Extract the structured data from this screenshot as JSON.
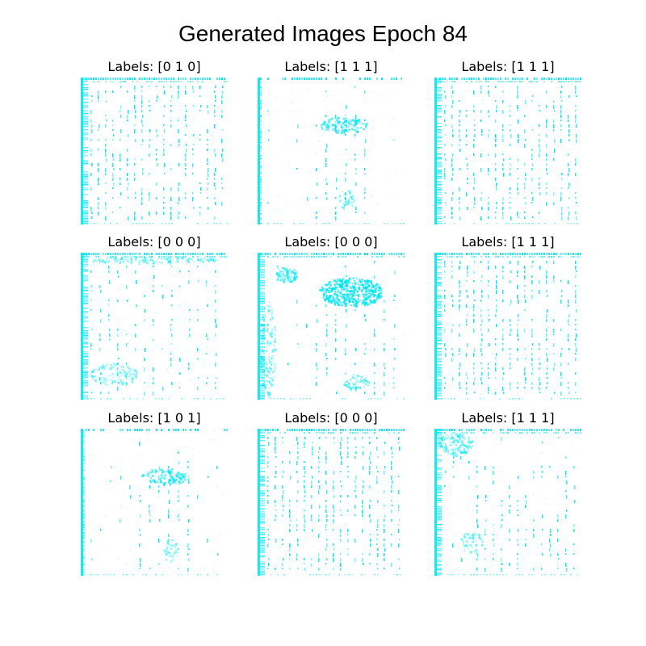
{
  "figure": {
    "title": "Generated Images Epoch 84"
  },
  "panels": [
    {
      "label": "Labels: [0 1 0]",
      "pattern": "dense-grid"
    },
    {
      "label": "Labels: [1 1 1]",
      "pattern": "sparse-blob"
    },
    {
      "label": "Labels: [1 1 1]",
      "pattern": "dense-grid"
    },
    {
      "label": "Labels: [0 0 0]",
      "pattern": "medium-grid"
    },
    {
      "label": "Labels: [0 0 0]",
      "pattern": "blobs"
    },
    {
      "label": "Labels: [1 1 1]",
      "pattern": "dense-grid"
    },
    {
      "label": "Labels: [1 0 1]",
      "pattern": "sparse-blob"
    },
    {
      "label": "Labels: [0 0 0]",
      "pattern": "dense-grid"
    },
    {
      "label": "Labels: [1 1 1]",
      "pattern": "corner-grid"
    }
  ],
  "colors": {
    "pixel": "#00e5ee",
    "background": "#ffffff"
  }
}
